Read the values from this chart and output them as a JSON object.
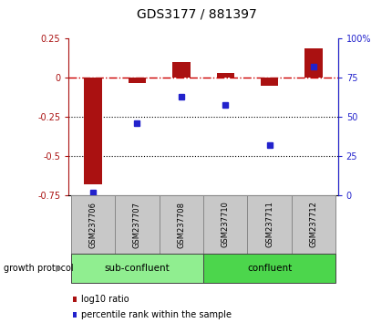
{
  "title": "GDS3177 / 881397",
  "samples": [
    "GSM237706",
    "GSM237707",
    "GSM237708",
    "GSM237710",
    "GSM237711",
    "GSM237712"
  ],
  "log10_ratio": [
    -0.68,
    -0.03,
    0.1,
    0.03,
    -0.05,
    0.19
  ],
  "percentile_rank": [
    2,
    46,
    63,
    58,
    32,
    82
  ],
  "ylim_left": [
    -0.75,
    0.25
  ],
  "ylim_right": [
    0,
    100
  ],
  "bar_color": "#AA1111",
  "dot_color": "#2222CC",
  "zero_line_color": "#CC0000",
  "dotted_line_color": "#000000",
  "group_label": "growth protocol",
  "legend_bar_label": "log10 ratio",
  "legend_dot_label": "percentile rank within the sample",
  "tick_bg_color": "#C8C8C8",
  "sub_confluent_color": "#90EE90",
  "confluent_color": "#4CD64C",
  "title_fontsize": 10,
  "tick_fontsize": 7,
  "label_fontsize": 7,
  "group_fontsize": 7.5
}
